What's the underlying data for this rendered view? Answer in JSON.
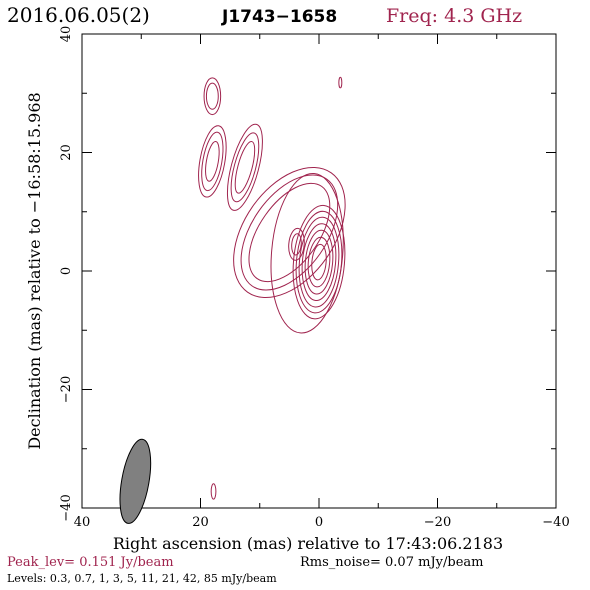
{
  "header": {
    "date": "2016.06.05(2)",
    "source": "J1743−1658",
    "freq": "Freq: 4.3 GHz"
  },
  "footer": {
    "peak": "Peak_lev=  0.151 Jy/beam",
    "rms": "Rms_noise= 0.07 mJy/beam",
    "levels": "Levels: 0.3, 0.7,   1,   3,   5,  11,  21,  42,  85 mJy/beam"
  },
  "colors": {
    "contour": "#a0244e",
    "beam": "#808080",
    "axes": "#000000"
  },
  "chart_data": {
    "type": "contour",
    "xlabel": "Right ascension (mas) relative to 17:43:06.2183",
    "ylabel": "Declination (mas) relative to −16:58:15.968",
    "xlim": [
      40,
      -40
    ],
    "ylim": [
      -40,
      40
    ],
    "x_ticks": [
      40,
      20,
      0,
      -20,
      -40
    ],
    "y_ticks": [
      -40,
      -20,
      0,
      20,
      40
    ],
    "x_tick_labels": [
      "40",
      "20",
      "0",
      "−20",
      "−40"
    ],
    "y_tick_labels": [
      "−40",
      "−20",
      "0",
      "20",
      "40"
    ],
    "levels_mJy": [
      0.3,
      0.7,
      1,
      3,
      5,
      11,
      21,
      42,
      85
    ],
    "beam": {
      "ra": 31,
      "dec": -35.5,
      "major_mas": 7.2,
      "minor_mas": 2.3,
      "pa_deg": 10
    },
    "components": [
      {
        "name": "core",
        "ra": 0,
        "dec": 1.5,
        "rings": [
          [
            1.2,
            3.0,
            5
          ],
          [
            1.8,
            4.2,
            5
          ],
          [
            2.3,
            5.4,
            5
          ],
          [
            2.8,
            6.5,
            5
          ],
          [
            3.3,
            7.6,
            5
          ],
          [
            3.8,
            8.6,
            5
          ],
          [
            4.3,
            9.6,
            5
          ]
        ]
      },
      {
        "name": "inner-jet",
        "ra": 2.0,
        "dec": 3.0,
        "rings": [
          [
            6.0,
            13.5,
            5
          ]
        ]
      },
      {
        "name": "jet-knot",
        "ra": 3.8,
        "dec": 4.5,
        "rings": [
          [
            0.8,
            1.8,
            5
          ],
          [
            1.3,
            2.7,
            5
          ]
        ]
      },
      {
        "name": "jet-extended",
        "ra": 5.0,
        "dec": 6.5,
        "rings": [
          [
            5.0,
            9.5,
            35
          ],
          [
            6.3,
            11.0,
            35
          ],
          [
            7.6,
            12.3,
            35
          ]
        ]
      },
      {
        "name": "blob-a",
        "ra": 12.5,
        "dec": 17.5,
        "rings": [
          [
            1.2,
            4.5,
            15
          ],
          [
            1.8,
            6.0,
            15
          ],
          [
            2.3,
            7.5,
            15
          ]
        ]
      },
      {
        "name": "blob-b",
        "ra": 18.0,
        "dec": 18.5,
        "rings": [
          [
            1.0,
            3.4,
            10
          ],
          [
            1.6,
            5.0,
            10
          ],
          [
            2.1,
            6.1,
            10
          ]
        ]
      },
      {
        "name": "blob-c",
        "ra": 18.0,
        "dec": 29.5,
        "rings": [
          [
            1.0,
            2.2,
            0
          ],
          [
            1.4,
            3.1,
            0
          ]
        ]
      },
      {
        "name": "blob-d",
        "ra": -3.6,
        "dec": 31.8,
        "rings": [
          [
            0.25,
            0.9,
            0
          ]
        ]
      },
      {
        "name": "blob-e",
        "ra": 17.8,
        "dec": -37.2,
        "rings": [
          [
            0.4,
            1.3,
            0
          ]
        ]
      }
    ]
  }
}
